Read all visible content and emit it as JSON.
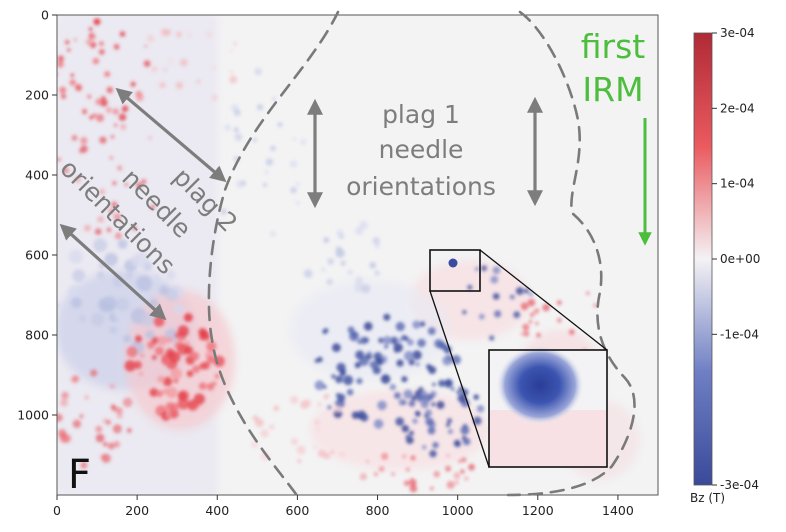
{
  "chart_data": {
    "type": "heatmap",
    "panel_label": "F",
    "xlabel": "",
    "ylabel": "",
    "xlim": [
      0,
      1500
    ],
    "ylim": [
      1200,
      0
    ],
    "x_ticks": [
      0,
      200,
      400,
      600,
      800,
      1000,
      1200,
      1400
    ],
    "y_ticks": [
      0,
      200,
      400,
      600,
      800,
      1000
    ],
    "colorbar": {
      "label": "Bz (T)",
      "colormap": "seismic-like diverging (blue to white to red)",
      "range": [
        -0.0003,
        0.0003
      ],
      "ticks": [
        "3e-04",
        "2e-04",
        "1e-04",
        "0e+00",
        "-1e-04",
        "-3e-04"
      ],
      "tick_values": [
        0.0003,
        0.0002,
        0.0001,
        0,
        -0.0001,
        -0.0003
      ]
    },
    "colors": {
      "positive": "#c8303a",
      "negative": "#283593",
      "zero": "#f4f4f4",
      "annotation_gray": "#7d7d7d",
      "annotation_green": "#4cbd3c"
    },
    "annotations": {
      "plag1": [
        "plag 1",
        "needle",
        "orientations"
      ],
      "plag2": [
        "plag 2",
        "needle",
        "orientations"
      ],
      "irm": [
        "first",
        "IRM"
      ]
    },
    "inset": {
      "zoom_box_x": [
        920,
        1050
      ],
      "zoom_box_y": [
        590,
        690
      ]
    }
  }
}
